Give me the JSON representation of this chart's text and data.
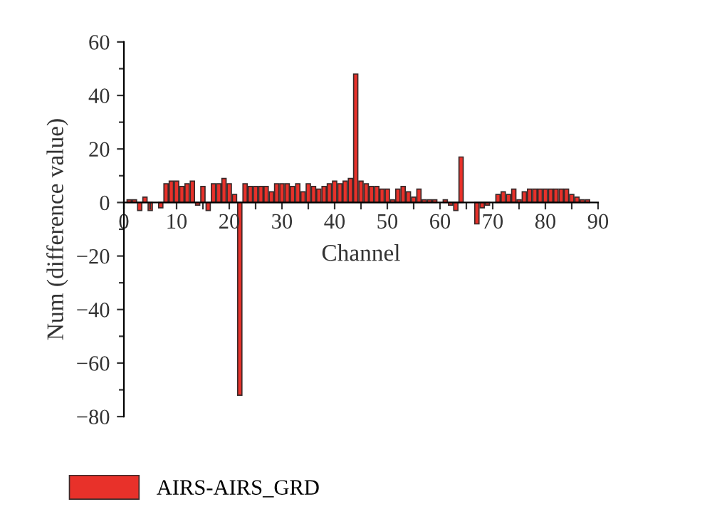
{
  "chart_data": {
    "type": "bar",
    "xlabel": "Channel",
    "ylabel": "Num (difference value)",
    "x": [
      1,
      2,
      3,
      4,
      5,
      6,
      7,
      8,
      9,
      10,
      11,
      12,
      13,
      14,
      15,
      16,
      17,
      18,
      19,
      20,
      21,
      22,
      23,
      24,
      25,
      26,
      27,
      28,
      29,
      30,
      31,
      32,
      33,
      34,
      35,
      36,
      37,
      38,
      39,
      40,
      41,
      42,
      43,
      44,
      45,
      46,
      47,
      48,
      49,
      50,
      51,
      52,
      53,
      54,
      55,
      56,
      57,
      58,
      59,
      60,
      61,
      62,
      63,
      64,
      65,
      66,
      67,
      68,
      69,
      70,
      71,
      72,
      73,
      74,
      75,
      76,
      77,
      78,
      79,
      80,
      81,
      82,
      83,
      84,
      85,
      86,
      87,
      88
    ],
    "series": [
      {
        "name": "AIRS-AIRS_GRD",
        "color": "#e8312a",
        "values": [
          1,
          1,
          -3,
          2,
          -3,
          null,
          -2,
          7,
          8,
          8,
          6,
          7,
          8,
          -1,
          6,
          -3,
          7,
          7,
          9,
          7,
          3,
          -72,
          7,
          6,
          6,
          6,
          6,
          4,
          7,
          7,
          7,
          6,
          7,
          4,
          7,
          6,
          5,
          6,
          7,
          8,
          7,
          8,
          9,
          48,
          8,
          7,
          6,
          6,
          5,
          5,
          1,
          5,
          6,
          4,
          2,
          5,
          1,
          1,
          1,
          null,
          1,
          -1,
          -3,
          17,
          null,
          null,
          -8,
          -2,
          -1,
          null,
          3,
          4,
          3,
          5,
          1,
          4,
          5,
          5,
          5,
          5,
          5,
          5,
          5,
          5,
          3,
          2,
          1,
          1
        ]
      }
    ],
    "xlim": [
      0,
      90
    ],
    "xticks": [
      0,
      {
        "value": 5,
        "label": null
      },
      10,
      {
        "value": 15,
        "label": null
      },
      20,
      {
        "value": 25,
        "label": null
      },
      30,
      {
        "value": 35,
        "label": null
      },
      40,
      {
        "value": 45,
        "label": null
      },
      50,
      {
        "value": 55,
        "label": null
      },
      60,
      {
        "value": 65,
        "label": null
      },
      70,
      {
        "value": 75,
        "label": null
      },
      80,
      {
        "value": 85,
        "label": null
      },
      90
    ],
    "ylim": [
      -80,
      60
    ],
    "yticks": [
      -80,
      {
        "value": -70,
        "label": null
      },
      -60,
      {
        "value": -50,
        "label": null
      },
      -40,
      {
        "value": -30,
        "label": null
      },
      -20,
      {
        "value": -10,
        "label": null
      },
      0,
      {
        "value": 10,
        "label": null
      },
      20,
      {
        "value": 30,
        "label": null
      },
      40,
      {
        "value": 50,
        "label": null
      },
      60
    ],
    "grid": false,
    "legend": "bottom left"
  }
}
